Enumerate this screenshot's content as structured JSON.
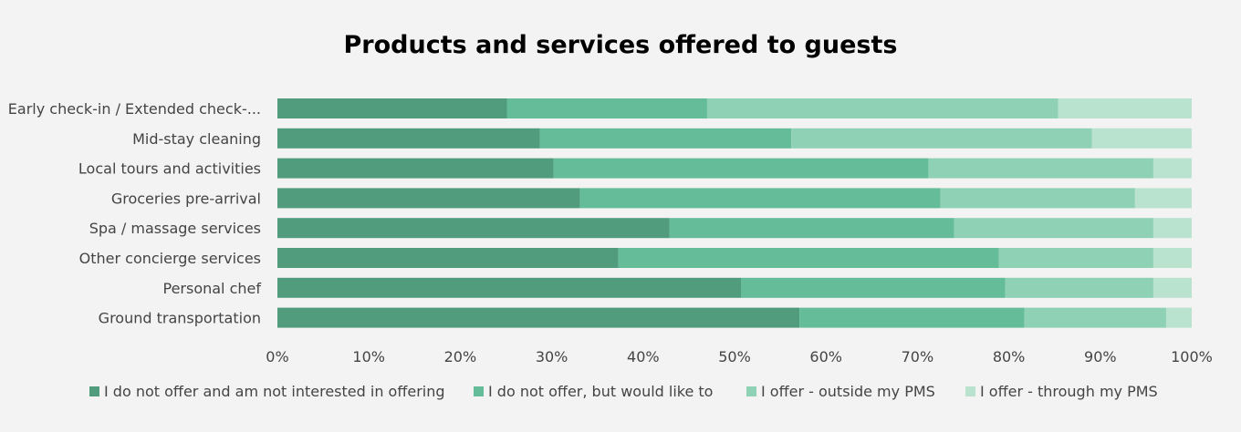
{
  "chart_data": {
    "type": "bar",
    "orientation": "horizontal",
    "stacked": "percent",
    "title": "Products and services offered to guests",
    "categories": [
      "Early check-in / Extended check-...",
      "Mid-stay cleaning",
      "Local tours and activities",
      "Groceries pre-arrival",
      "Spa / massage services",
      "Other concierge services",
      "Personal chef",
      "Ground transportation"
    ],
    "series": [
      {
        "name": "I do not offer and am not interested in offering",
        "color": "#529c7e",
        "values": [
          25.1,
          28.7,
          30.2,
          33.1,
          42.9,
          37.3,
          50.7,
          57.1
        ]
      },
      {
        "name": "I do not offer, but would like to",
        "color": "#64bc98",
        "values": [
          21.9,
          27.5,
          41.0,
          39.4,
          31.1,
          41.6,
          28.9,
          24.6
        ]
      },
      {
        "name": "I offer - outside my PMS",
        "color": "#8fd1b4",
        "values": [
          38.4,
          32.9,
          24.6,
          21.3,
          21.8,
          16.9,
          16.2,
          15.5
        ]
      },
      {
        "name": "I offer - through my PMS",
        "color": "#b9e2cf",
        "values": [
          14.6,
          10.9,
          4.2,
          6.2,
          4.2,
          4.2,
          4.2,
          2.8
        ]
      }
    ],
    "xlim": [
      0,
      100
    ],
    "xticks": [
      "0%",
      "10%",
      "20%",
      "30%",
      "40%",
      "50%",
      "60%",
      "70%",
      "80%",
      "90%",
      "100%"
    ],
    "grid": false,
    "legend": "bottom"
  }
}
